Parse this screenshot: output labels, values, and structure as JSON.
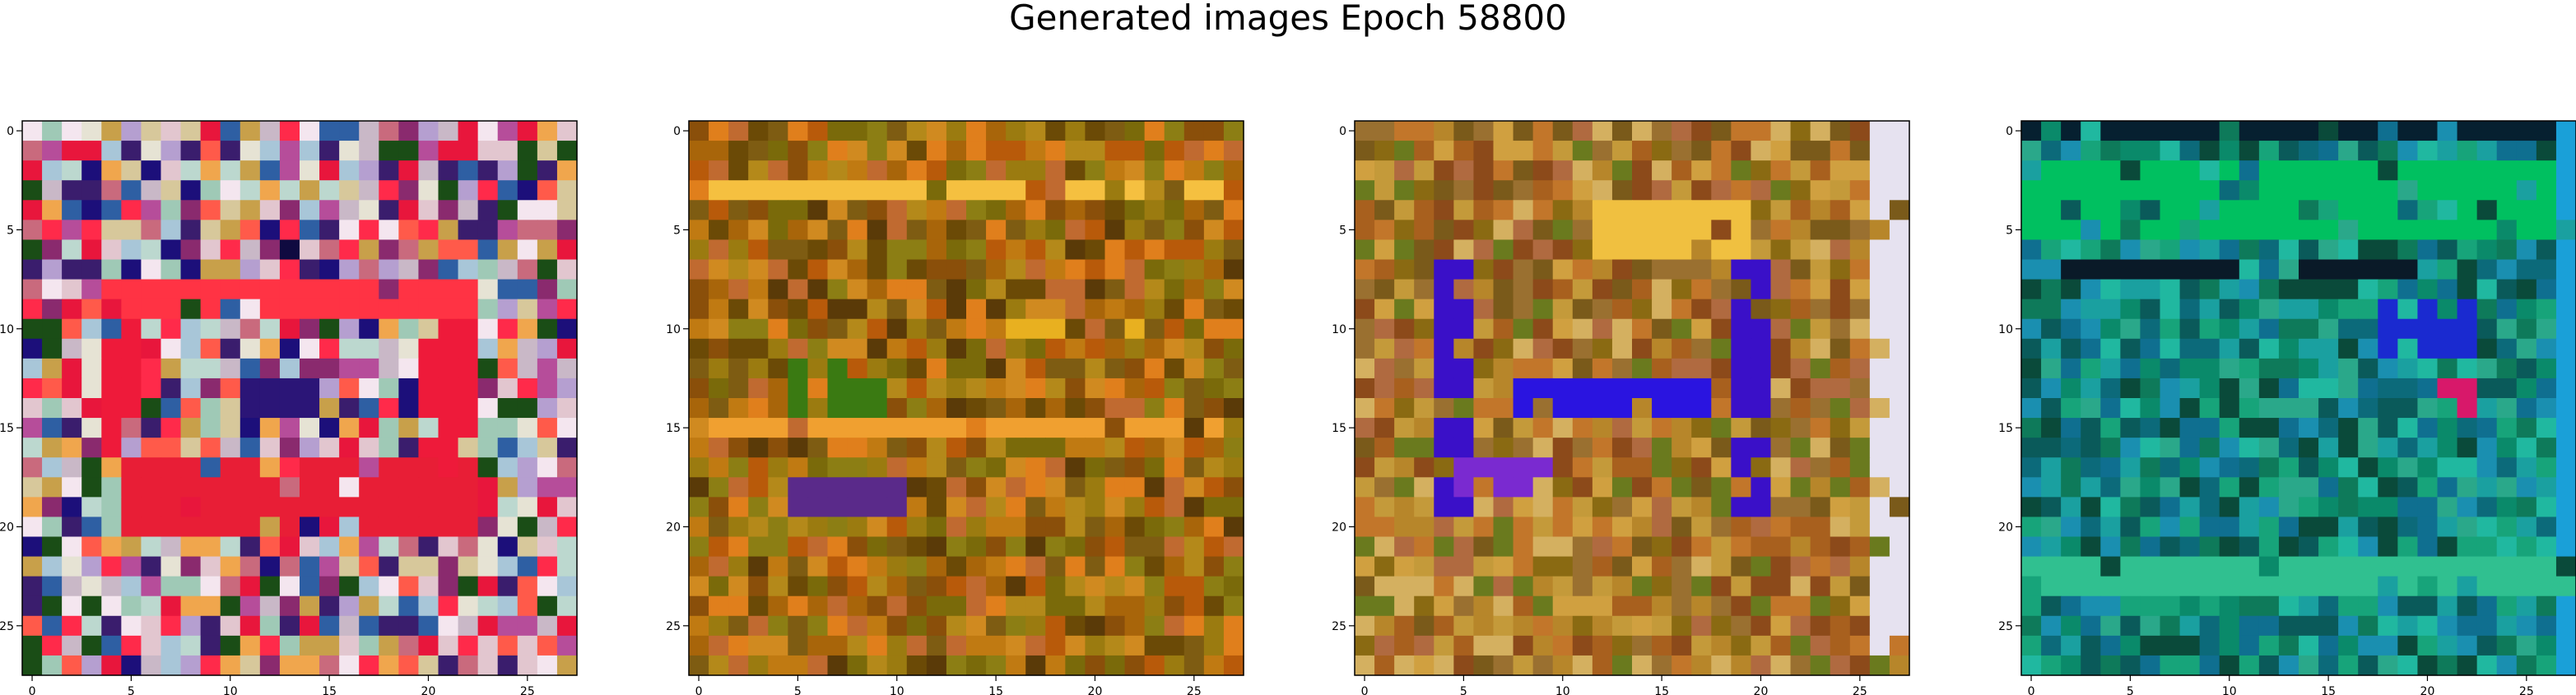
{
  "figure": {
    "title": "Generated images Epoch 58800"
  },
  "chart_data": [
    {
      "type": "heatmap",
      "panel": 1,
      "grid_size": [
        28,
        28
      ],
      "xlim": [
        -0.5,
        27.5
      ],
      "ylim": [
        27.5,
        -0.5
      ],
      "x_ticks": [
        0,
        5,
        10,
        15,
        20,
        25
      ],
      "y_ticks": [
        0,
        5,
        10,
        15,
        20,
        25
      ],
      "palette": [
        "#bcd8cf",
        "#c9b8c7",
        "#a8c6d8",
        "#e2c6cf",
        "#9fc9b6",
        "#d7c89b",
        "#b59fd0",
        "#e6e3d4",
        "#ff2a4a",
        "#e8163c",
        "#ff5a4a",
        "#f0a64d",
        "#1c0f7a",
        "#3a1d6d",
        "#2e5fa3",
        "#f4e6ef",
        "#c8a04a",
        "#c96a7d",
        "#b64d9a",
        "#8a2a6e",
        "#1a4d16"
      ],
      "features": [
        {
          "color": "#ff3344",
          "rows": [
            8,
            9
          ],
          "cols": [
            4,
            22
          ]
        },
        {
          "color": "#ee1a3a",
          "rows": [
            10,
            18
          ],
          "cols": [
            4,
            5
          ]
        },
        {
          "color": "#ee1a3a",
          "rows": [
            10,
            18
          ],
          "cols": [
            20,
            22
          ]
        },
        {
          "color": "#e81e36",
          "rows": [
            17,
            20
          ],
          "cols": [
            5,
            22
          ]
        },
        {
          "color": "#2b1577",
          "rows": [
            13,
            14
          ],
          "cols": [
            11,
            14
          ]
        },
        {
          "color": "#0f0a40",
          "rows": [
            6,
            6
          ],
          "cols": [
            13,
            13
          ]
        }
      ]
    },
    {
      "type": "heatmap",
      "panel": 2,
      "grid_size": [
        28,
        28
      ],
      "xlim": [
        -0.5,
        27.5
      ],
      "ylim": [
        27.5,
        -0.5
      ],
      "x_ticks": [
        0,
        5,
        10,
        15,
        20,
        25
      ],
      "y_ticks": [
        0,
        5,
        10,
        15,
        20,
        25
      ],
      "palette": [
        "#a8650a",
        "#8a4f0a",
        "#c07a12",
        "#7a6a0a",
        "#9b7b10",
        "#b85a0a",
        "#d08a20",
        "#6b4a06",
        "#8c7e14",
        "#c06a30",
        "#5a3a08",
        "#e07f1c",
        "#b4891a",
        "#7e5c12"
      ],
      "features": [
        {
          "color": "#f5c040",
          "rows": [
            3,
            3
          ],
          "cols": [
            1,
            26
          ]
        },
        {
          "color": "#f0a030",
          "rows": [
            15,
            15
          ],
          "cols": [
            1,
            26
          ]
        },
        {
          "color": "#e8b020",
          "rows": [
            10,
            10
          ],
          "cols": [
            16,
            22
          ]
        },
        {
          "color": "#3a7a12",
          "rows": [
            12,
            14
          ],
          "cols": [
            5,
            9
          ]
        },
        {
          "color": "#5a2a8a",
          "rows": [
            18,
            19
          ],
          "cols": [
            5,
            10
          ]
        }
      ]
    },
    {
      "type": "heatmap",
      "panel": 3,
      "grid_size": [
        28,
        28
      ],
      "xlim": [
        -0.5,
        27.5
      ],
      "ylim": [
        27.5,
        -0.5
      ],
      "x_ticks": [
        0,
        5,
        10,
        15,
        20,
        25
      ],
      "y_ticks": [
        0,
        5,
        10,
        15,
        20,
        25
      ],
      "palette": [
        "#b7862a",
        "#8a6a12",
        "#c49a3a",
        "#7a5a1a",
        "#d0a040",
        "#9a7030",
        "#a8601e",
        "#6a7a1e",
        "#c2762a",
        "#8c4a1a",
        "#d4b060",
        "#b06a40"
      ],
      "features": [
        {
          "color": "#2a14e0",
          "rows": [
            13,
            14
          ],
          "cols": [
            8,
            17
          ]
        },
        {
          "color": "#3a10c8",
          "rows": [
            7,
            19
          ],
          "cols": [
            4,
            5
          ]
        },
        {
          "color": "#3a10c8",
          "rows": [
            7,
            19
          ],
          "cols": [
            19,
            20
          ]
        },
        {
          "color": "#7a2ad0",
          "rows": [
            17,
            18
          ],
          "cols": [
            5,
            9
          ]
        },
        {
          "color": "#e6e2f0",
          "rows": [
            0,
            27
          ],
          "cols": [
            26,
            27
          ]
        },
        {
          "color": "#f0c040",
          "rows": [
            4,
            6
          ],
          "cols": [
            12,
            19
          ]
        }
      ]
    },
    {
      "type": "heatmap",
      "panel": 4,
      "grid_size": [
        28,
        28
      ],
      "xlim": [
        -0.5,
        27.5
      ],
      "ylim": [
        27.5,
        -0.5
      ],
      "x_ticks": [
        0,
        5,
        10,
        15,
        20,
        25
      ],
      "y_ticks": [
        0,
        5,
        10,
        15,
        20,
        25
      ],
      "palette": [
        "#0a8a6a",
        "#17a47a",
        "#0c6a7a",
        "#1aa0a0",
        "#0a5a5a",
        "#2aa88a",
        "#0e7a5a",
        "#1a8fb0",
        "#0a4a3a",
        "#20b8a0",
        "#0f6f90"
      ],
      "features": [
        {
          "color": "#00c060",
          "rows": [
            2,
            5
          ],
          "cols": [
            0,
            27
          ]
        },
        {
          "color": "#062030",
          "rows": [
            0,
            0
          ],
          "cols": [
            0,
            27
          ]
        },
        {
          "color": "#0a1a28",
          "rows": [
            7,
            7
          ],
          "cols": [
            2,
            20
          ]
        },
        {
          "color": "#1a2ad0",
          "rows": [
            9,
            11
          ],
          "cols": [
            18,
            22
          ]
        },
        {
          "color": "#d8186a",
          "rows": [
            13,
            14
          ],
          "cols": [
            21,
            22
          ]
        },
        {
          "color": "#1aa0d8",
          "rows": [
            0,
            27
          ],
          "cols": [
            27,
            27
          ]
        },
        {
          "color": "#30c090",
          "rows": [
            22,
            23
          ],
          "cols": [
            0,
            27
          ]
        }
      ]
    }
  ]
}
